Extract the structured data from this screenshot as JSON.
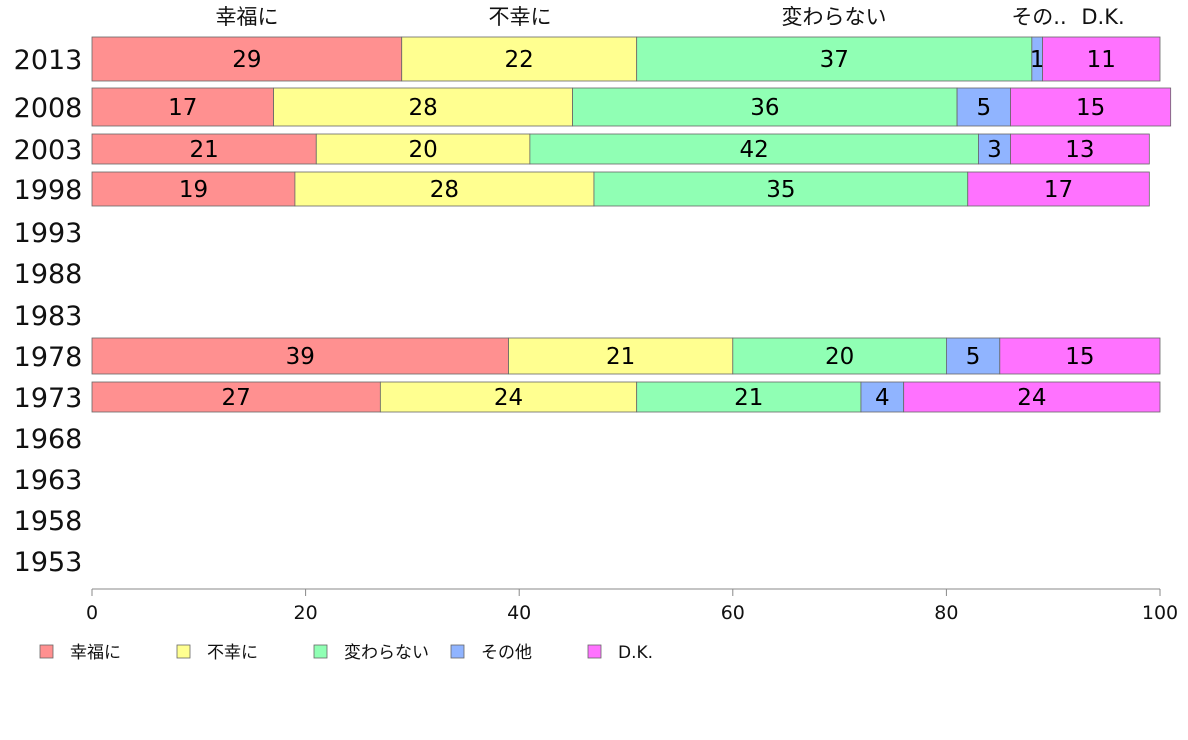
{
  "chart_data": {
    "type": "bar",
    "orientation": "horizontal",
    "stacked": true,
    "categories": [
      "2013",
      "2008",
      "2003",
      "1998",
      "1993",
      "1988",
      "1983",
      "1978",
      "1973",
      "1968",
      "1963",
      "1958",
      "1953"
    ],
    "series": [
      {
        "name": "幸福に",
        "color": "#ff9090",
        "values": [
          29,
          17,
          21,
          19,
          null,
          null,
          null,
          39,
          27,
          null,
          null,
          null,
          null
        ]
      },
      {
        "name": "不幸に",
        "color": "#ffff90",
        "values": [
          22,
          28,
          20,
          28,
          null,
          null,
          null,
          21,
          24,
          null,
          null,
          null,
          null
        ]
      },
      {
        "name": "変わらない",
        "color": "#90ffb4",
        "values": [
          37,
          36,
          42,
          35,
          null,
          null,
          null,
          20,
          21,
          null,
          null,
          null,
          null
        ]
      },
      {
        "name": "その他",
        "color": "#90b4ff",
        "values": [
          1,
          5,
          3,
          0,
          null,
          null,
          null,
          5,
          4,
          null,
          null,
          null,
          null
        ]
      },
      {
        "name": "D.K.",
        "color": "#ff72ff",
        "values": [
          11,
          15,
          13,
          17,
          null,
          null,
          null,
          15,
          24,
          null,
          null,
          null,
          null
        ]
      }
    ],
    "top_labels": [
      "幸福に",
      "不幸に",
      "変わらない",
      "その..",
      "D.K."
    ],
    "xlim": [
      0,
      100
    ],
    "xticks": [
      "0",
      "20",
      "40",
      "60",
      "80",
      "100"
    ],
    "legend_position": "bottom-left",
    "grid": false
  }
}
